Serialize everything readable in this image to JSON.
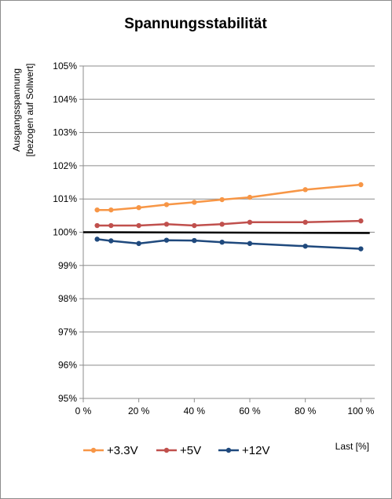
{
  "chart_data": {
    "type": "line",
    "title": "Spannungsstabilität",
    "ylabel_lines": [
      "Ausgangsspannung",
      "[bezogen auf Sollwert]"
    ],
    "xlabel": "Last [%]",
    "x_ticks": [
      0,
      20,
      40,
      60,
      80,
      100
    ],
    "x_tick_labels": [
      "0 %",
      "20 %",
      "40 %",
      "60 %",
      "80 %",
      "100 %"
    ],
    "y_ticks": [
      95,
      96,
      97,
      98,
      99,
      100,
      101,
      102,
      103,
      104,
      105
    ],
    "y_tick_labels": [
      "95%",
      "96%",
      "97%",
      "98%",
      "99%",
      "100%",
      "101%",
      "102%",
      "103%",
      "104%",
      "105%"
    ],
    "xlim": [
      0,
      105
    ],
    "ylim": [
      95,
      105
    ],
    "grid": true,
    "legend_position": "bottom-left",
    "reference_line": {
      "y": 100,
      "color": "#000000"
    },
    "series": [
      {
        "name": "+3.3V",
        "color": "#f79646",
        "x": [
          5,
          10,
          20,
          30,
          40,
          50,
          60,
          80,
          100
        ],
        "y": [
          100.67,
          100.67,
          100.74,
          100.83,
          100.9,
          100.98,
          101.05,
          101.28,
          101.43
        ]
      },
      {
        "name": "+5V",
        "color": "#c0504d",
        "x": [
          5,
          10,
          20,
          30,
          40,
          50,
          60,
          80,
          100
        ],
        "y": [
          100.2,
          100.2,
          100.2,
          100.24,
          100.2,
          100.24,
          100.3,
          100.3,
          100.34
        ]
      },
      {
        "name": "+12V",
        "color": "#1f497d",
        "x": [
          5,
          10,
          20,
          30,
          40,
          50,
          60,
          80,
          100
        ],
        "y": [
          99.79,
          99.74,
          99.66,
          99.76,
          99.75,
          99.7,
          99.66,
          99.58,
          99.5
        ]
      }
    ]
  }
}
